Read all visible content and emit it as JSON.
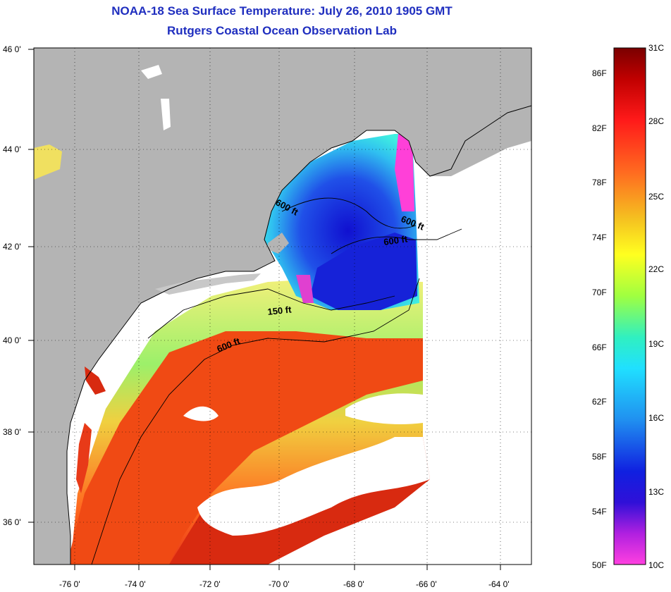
{
  "header": {
    "title": "NOAA-18 Sea Surface Temperature:  July 26, 2010 1905 GMT",
    "subtitle": "Rutgers Coastal Ocean Observation Lab"
  },
  "map": {
    "lat_labels": [
      "46 0'",
      "44 0'",
      "42 0'",
      "40 0'",
      "38 0'",
      "36 0'"
    ],
    "lon_labels": [
      "-76 0'",
      "-74 0'",
      "-72 0'",
      "-70 0'",
      "-68 0'",
      "-66 0'",
      "-64 0'"
    ],
    "contour_labels": [
      "600 ft",
      "600 ft",
      "600 ft",
      "150 ft",
      "600 ft"
    ],
    "colors": {
      "land": "#b4b4b4",
      "cloud": "#ffffff",
      "warm": "#f04010",
      "cold": "#1a2ee0",
      "coldest": "#ff30d0"
    }
  },
  "colorbar": {
    "celsius_labels": [
      "31C",
      "28C",
      "25C",
      "22C",
      "19C",
      "16C",
      "13C",
      "10C"
    ],
    "fahrenheit_labels": [
      "86F",
      "82F",
      "78F",
      "74F",
      "70F",
      "66F",
      "62F",
      "58F",
      "54F",
      "50F"
    ],
    "range_c": [
      10,
      31
    ],
    "range_f": [
      50,
      88
    ]
  }
}
